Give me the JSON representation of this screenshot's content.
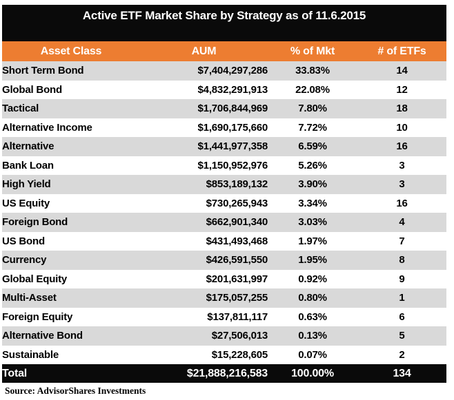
{
  "title": "Active ETF Market Share by Strategy as of 11.6.2015",
  "source": "Source: AdvisorShares Investments",
  "colors": {
    "title_bg": "#0A0A0A",
    "header_bg": "#ED7D31",
    "header_text": "#FFFFFF",
    "row_alt_bg": "#D9D9D9",
    "row_bg": "#FFFFFF",
    "total_bg": "#0A0A0A",
    "total_text": "#FFFFFF"
  },
  "table": {
    "columns": [
      "Asset Class",
      "AUM",
      "% of Mkt",
      "# of ETFs"
    ],
    "rows": [
      {
        "asset_class": "Short Term Bond",
        "aum": "$7,404,297,286",
        "pct": "33.83%",
        "etfs": "14"
      },
      {
        "asset_class": "Global Bond",
        "aum": "$4,832,291,913",
        "pct": "22.08%",
        "etfs": "12"
      },
      {
        "asset_class": "Tactical",
        "aum": "$1,706,844,969",
        "pct": "7.80%",
        "etfs": "18"
      },
      {
        "asset_class": "Alternative Income",
        "aum": "$1,690,175,660",
        "pct": "7.72%",
        "etfs": "10"
      },
      {
        "asset_class": "Alternative",
        "aum": "$1,441,977,358",
        "pct": "6.59%",
        "etfs": "16"
      },
      {
        "asset_class": "Bank Loan",
        "aum": "$1,150,952,976",
        "pct": "5.26%",
        "etfs": "3"
      },
      {
        "asset_class": "High Yield",
        "aum": "$853,189,132",
        "pct": "3.90%",
        "etfs": "3"
      },
      {
        "asset_class": "US Equity",
        "aum": "$730,265,943",
        "pct": "3.34%",
        "etfs": "16"
      },
      {
        "asset_class": "Foreign Bond",
        "aum": "$662,901,340",
        "pct": "3.03%",
        "etfs": "4"
      },
      {
        "asset_class": "US Bond",
        "aum": "$431,493,468",
        "pct": "1.97%",
        "etfs": "7"
      },
      {
        "asset_class": "Currency",
        "aum": "$426,591,550",
        "pct": "1.95%",
        "etfs": "8"
      },
      {
        "asset_class": "Global Equity",
        "aum": "$201,631,997",
        "pct": "0.92%",
        "etfs": "9"
      },
      {
        "asset_class": "Multi-Asset",
        "aum": "$175,057,255",
        "pct": "0.80%",
        "etfs": "1"
      },
      {
        "asset_class": "Foreign Equity",
        "aum": "$137,811,117",
        "pct": "0.63%",
        "etfs": "6"
      },
      {
        "asset_class": "Alternative Bond",
        "aum": "$27,506,013",
        "pct": "0.13%",
        "etfs": "5"
      },
      {
        "asset_class": "Sustainable",
        "aum": "$15,228,605",
        "pct": "0.07%",
        "etfs": "2"
      }
    ],
    "total": {
      "label": "Total",
      "aum": "$21,888,216,583",
      "pct": "100.00%",
      "etfs": "134"
    }
  },
  "chart_data": {
    "type": "table",
    "title": "Active ETF Market Share by Strategy as of 11.6.2015",
    "columns": [
      "Asset Class",
      "AUM",
      "% of Mkt",
      "# of ETFs"
    ],
    "rows": [
      [
        "Short Term Bond",
        7404297286,
        33.83,
        14
      ],
      [
        "Global Bond",
        4832291913,
        22.08,
        12
      ],
      [
        "Tactical",
        1706844969,
        7.8,
        18
      ],
      [
        "Alternative Income",
        1690175660,
        7.72,
        10
      ],
      [
        "Alternative",
        1441977358,
        6.59,
        16
      ],
      [
        "Bank Loan",
        1150952976,
        5.26,
        3
      ],
      [
        "High Yield",
        853189132,
        3.9,
        3
      ],
      [
        "US Equity",
        730265943,
        3.34,
        16
      ],
      [
        "Foreign Bond",
        662901340,
        3.03,
        4
      ],
      [
        "US Bond",
        431493468,
        1.97,
        7
      ],
      [
        "Currency",
        426591550,
        1.95,
        8
      ],
      [
        "Global Equity",
        201631997,
        0.92,
        9
      ],
      [
        "Multi-Asset",
        175057255,
        0.8,
        1
      ],
      [
        "Foreign Equity",
        137811117,
        0.63,
        6
      ],
      [
        "Alternative Bond",
        27506013,
        0.13,
        5
      ],
      [
        "Sustainable",
        15228605,
        0.07,
        2
      ]
    ],
    "total": [
      "Total",
      21888216583,
      100.0,
      134
    ],
    "source": "AdvisorShares Investments"
  }
}
